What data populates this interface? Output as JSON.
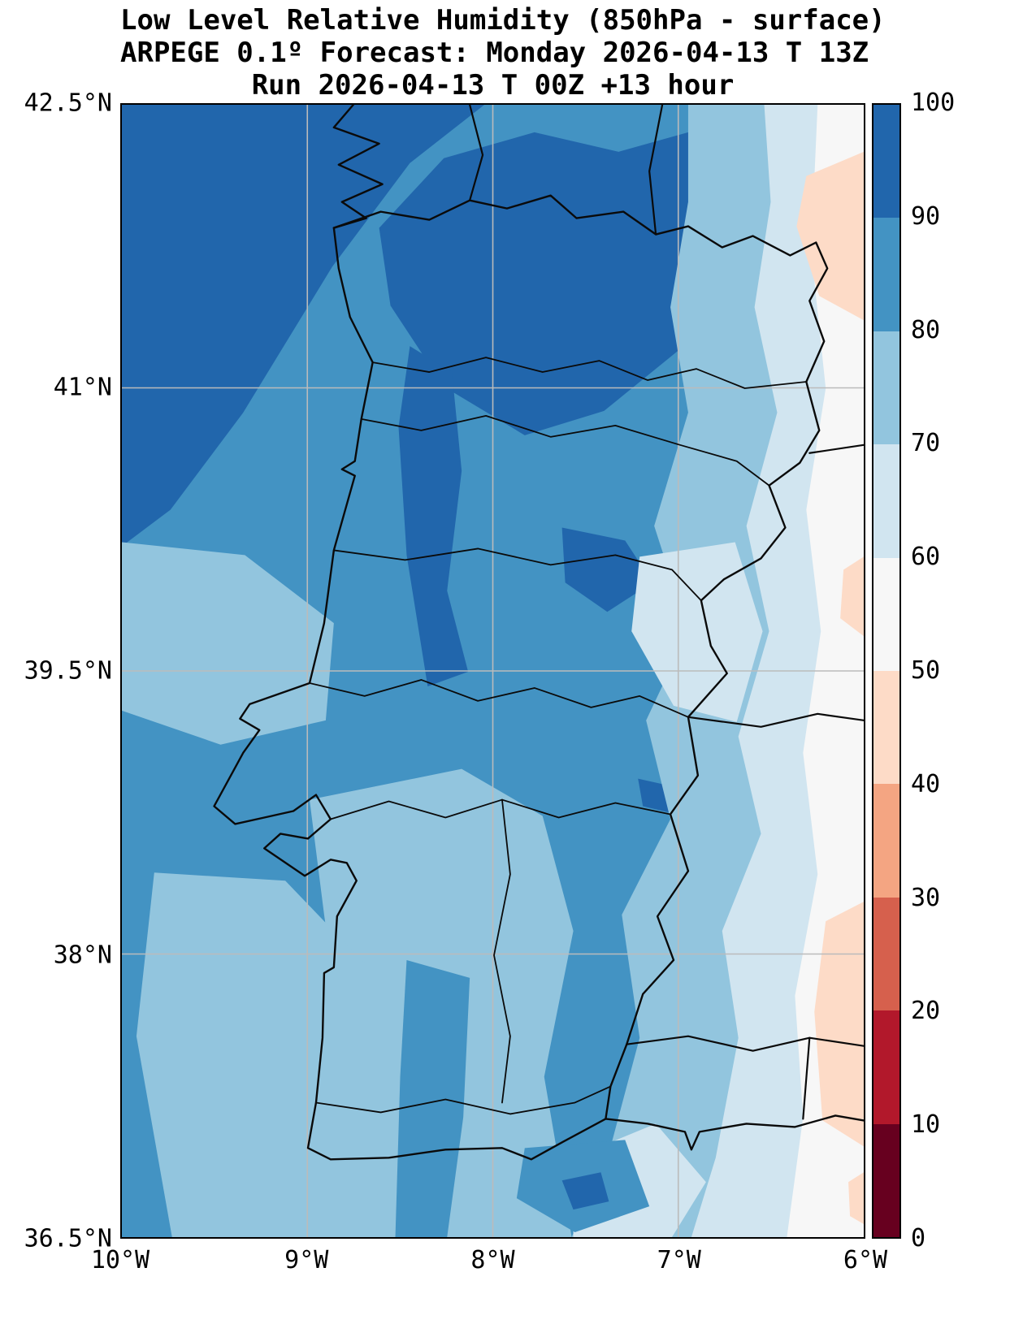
{
  "title": {
    "line1": "Low Level Relative Humidity (850hPa - surface)",
    "line2": "ARPEGE 0.1º Forecast: Monday 2026-04-13 T 13Z",
    "line3": "Run 2026-04-13 T 00Z +13 hour"
  },
  "axes": {
    "y_ticks": [
      "42.5°N",
      "41°N",
      "39.5°N",
      "38°N",
      "36.5°N"
    ],
    "x_ticks": [
      "10°W",
      "9°W",
      "8°W",
      "7°W",
      "6°W"
    ]
  },
  "colorbar": {
    "tick_labels": [
      "100",
      "90",
      "80",
      "70",
      "60",
      "50",
      "40",
      "30",
      "20",
      "10",
      "0"
    ],
    "segment_colors_top_to_bottom": [
      "#2166ac",
      "#4393c3",
      "#92c5de",
      "#d1e5f0",
      "#f7f7f7",
      "#fddbc7",
      "#f4a582",
      "#d6604d",
      "#b2182b",
      "#67001f"
    ]
  },
  "chart_data": {
    "type": "heatmap",
    "title": "Low Level Relative Humidity (850hPa - surface)",
    "subtitle": "ARPEGE 0.1º Forecast: Monday 2026-04-13 T 13Z",
    "run_line": "Run 2026-04-13 T 00Z +13 hour",
    "x_ticks": [
      "10°W",
      "9°W",
      "8°W",
      "7°W",
      "6°W"
    ],
    "y_ticks": [
      "36.5°N",
      "38°N",
      "39.5°N",
      "41°N",
      "42.5°N"
    ],
    "lon_range": [
      "10°W",
      "6°W"
    ],
    "lat_range": [
      "36.5°N",
      "42.5°N"
    ],
    "grid": true,
    "color_scale": {
      "levels": [
        0,
        10,
        20,
        30,
        40,
        50,
        60,
        70,
        80,
        90,
        100
      ],
      "colors_low_to_high": [
        "#67001f",
        "#b2182b",
        "#d6604d",
        "#f4a582",
        "#fddbc7",
        "#f7f7f7",
        "#d1e5f0",
        "#92c5de",
        "#4393c3",
        "#2166ac"
      ]
    },
    "pattern_summary": "90-100% humidity over the northwest Atlantic corner and northern Portugal interior; 80-90% over most of the ocean and western Portugal; 60-80% over central and southern Portugal; 50-60% over western Spain near the eastern edge; small 40-50% patches along the far eastern edge."
  }
}
